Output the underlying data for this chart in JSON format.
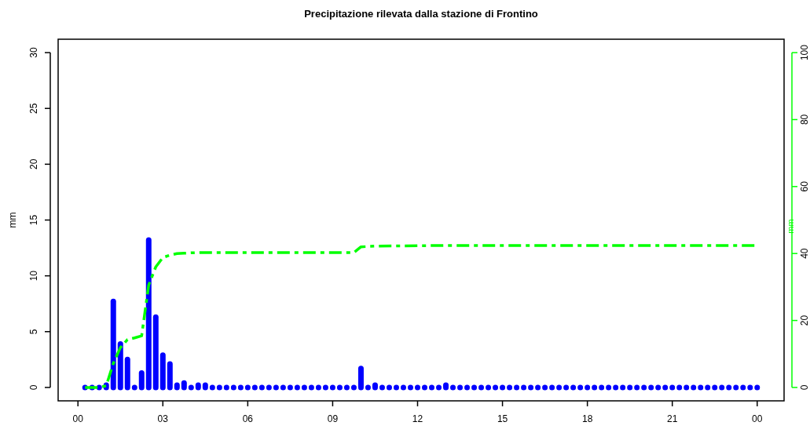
{
  "chart_data": {
    "type": "bar",
    "title": "Precipitazione rilevata dalla stazione di Frontino",
    "ylabel": "mm",
    "y2label": "mm",
    "x": [
      0.25,
      0.5,
      0.75,
      1,
      1.25,
      1.5,
      1.75,
      2,
      2.25,
      2.5,
      2.75,
      3,
      3.25,
      3.5,
      3.75,
      4,
      4.25,
      4.5,
      4.75,
      5,
      5.25,
      5.5,
      5.75,
      6,
      6.25,
      6.5,
      6.75,
      7,
      7.25,
      7.5,
      7.75,
      8,
      8.25,
      8.5,
      8.75,
      9,
      9.25,
      9.5,
      9.75,
      10,
      10.25,
      10.5,
      10.75,
      11,
      11.25,
      11.5,
      11.75,
      12,
      12.25,
      12.5,
      12.75,
      13,
      13.25,
      13.5,
      13.75,
      14,
      14.25,
      14.5,
      14.75,
      15,
      15.25,
      15.5,
      15.75,
      16,
      16.25,
      16.5,
      16.75,
      17,
      17.25,
      17.5,
      17.75,
      18,
      18.25,
      18.5,
      18.75,
      19,
      19.25,
      19.5,
      19.75,
      20,
      20.25,
      20.5,
      20.75,
      21,
      21.25,
      21.5,
      21.75,
      22,
      22.25,
      22.5,
      22.75,
      23,
      23.25,
      23.5,
      23.75,
      24
    ],
    "series": [
      {
        "color": "#0000ff",
        "values": [
          0,
          0,
          0,
          0.2,
          7.7,
          3.9,
          2.5,
          0,
          1.3,
          13.2,
          6.3,
          2.9,
          2.1,
          0.2,
          0.4,
          0,
          0.2,
          0.2,
          0,
          0,
          0,
          0,
          0,
          0,
          0,
          0,
          0,
          0,
          0,
          0,
          0,
          0,
          0,
          0,
          0,
          0,
          0,
          0,
          0,
          1.7,
          0,
          0.2,
          0,
          0,
          0,
          0,
          0,
          0,
          0,
          0,
          0,
          0.2,
          0,
          0,
          0,
          0,
          0,
          0,
          0,
          0,
          0,
          0,
          0,
          0,
          0,
          0,
          0,
          0,
          0,
          0,
          0,
          0,
          0,
          0,
          0,
          0,
          0,
          0,
          0,
          0,
          0,
          0,
          0,
          0,
          0,
          0,
          0,
          0,
          0,
          0,
          0,
          0,
          0,
          0,
          0,
          0
        ]
      },
      {
        "type": "line",
        "axis": "y2",
        "color": "#00ff00",
        "line_style": "dashed",
        "x": [
          0.25,
          0.5,
          0.75,
          1,
          1.25,
          1.5,
          1.75,
          2,
          2.25,
          2.5,
          2.75,
          3,
          3.25,
          3.5,
          3.75,
          4,
          4.5,
          5,
          9.75,
          10,
          10.5,
          13,
          24
        ],
        "values": [
          0,
          0,
          0,
          0.5,
          7.2,
          11.9,
          14.3,
          14.8,
          15.4,
          30.6,
          36,
          38.8,
          39.5,
          40,
          40.1,
          40.2,
          40.3,
          40.3,
          40.3,
          42,
          42.2,
          42.4,
          42.4
        ]
      }
    ],
    "xlim": [
      -0.7,
      24.95
    ],
    "xticks": [
      {
        "value": 0,
        "label": "00"
      },
      {
        "value": 3,
        "label": "03"
      },
      {
        "value": 6,
        "label": "06"
      },
      {
        "value": 9,
        "label": "09"
      },
      {
        "value": 12,
        "label": "12"
      },
      {
        "value": 15,
        "label": "15"
      },
      {
        "value": 18,
        "label": "18"
      },
      {
        "value": 21,
        "label": "21"
      },
      {
        "value": 24,
        "label": "00"
      }
    ],
    "ylim": [
      -1.2,
      31.2
    ],
    "yticks": [
      0,
      5,
      10,
      15,
      20,
      25,
      30
    ],
    "y2lim": [
      -4,
      104
    ],
    "y2ticks": [
      0,
      20,
      40,
      60,
      80,
      100
    ],
    "grid": false
  }
}
